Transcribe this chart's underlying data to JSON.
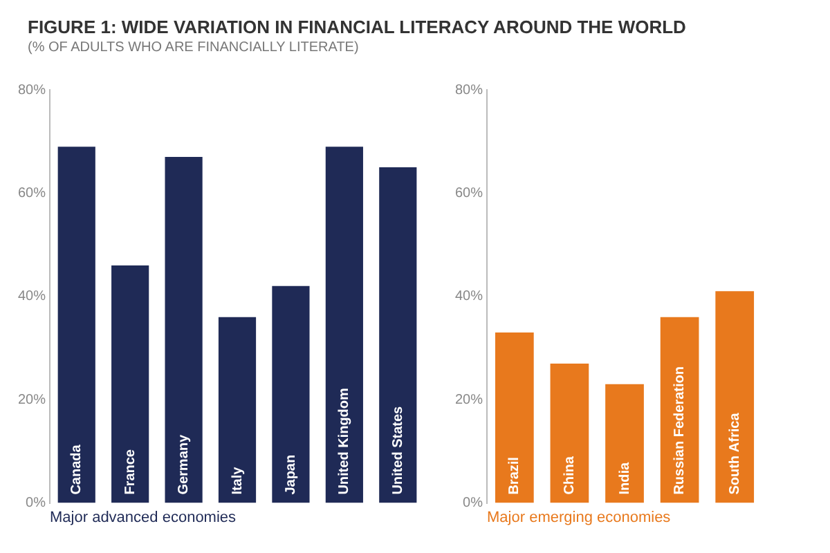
{
  "chart_data": [
    {
      "type": "bar",
      "title": "FIGURE 1: WIDE VARIATION IN FINANCIAL LITERACY AROUND THE WORLD",
      "subtitle": "(% OF ADULTS WHO ARE FINANCIALLY LITERATE)",
      "xlabel": "Major advanced economies",
      "categories": [
        "Canada",
        "France",
        "Germany",
        "Italy",
        "Japan",
        "United Kingdom",
        "United States"
      ],
      "values": [
        69,
        46,
        67,
        36,
        42,
        69,
        65
      ],
      "color": "#1f2a56",
      "ylim": [
        0,
        80
      ],
      "yticks": [
        {
          "value": 0,
          "label": "0%"
        },
        {
          "value": 20,
          "label": "20%"
        },
        {
          "value": 40,
          "label": "40%"
        },
        {
          "value": 60,
          "label": "60%"
        },
        {
          "value": 80,
          "label": "80%"
        }
      ],
      "grid": false
    },
    {
      "type": "bar",
      "xlabel": "Major emerging economies",
      "categories": [
        "Brazil",
        "China",
        "India",
        "Russian Federation",
        "South Africa"
      ],
      "values": [
        33,
        27,
        23,
        36,
        41
      ],
      "color": "#e8791d",
      "ylim": [
        0,
        80
      ],
      "yticks": [
        {
          "value": 0,
          "label": "0%"
        },
        {
          "value": 20,
          "label": "20%"
        },
        {
          "value": 40,
          "label": "40%"
        },
        {
          "value": 60,
          "label": "60%"
        },
        {
          "value": 80,
          "label": "80%"
        }
      ],
      "grid": false
    }
  ]
}
